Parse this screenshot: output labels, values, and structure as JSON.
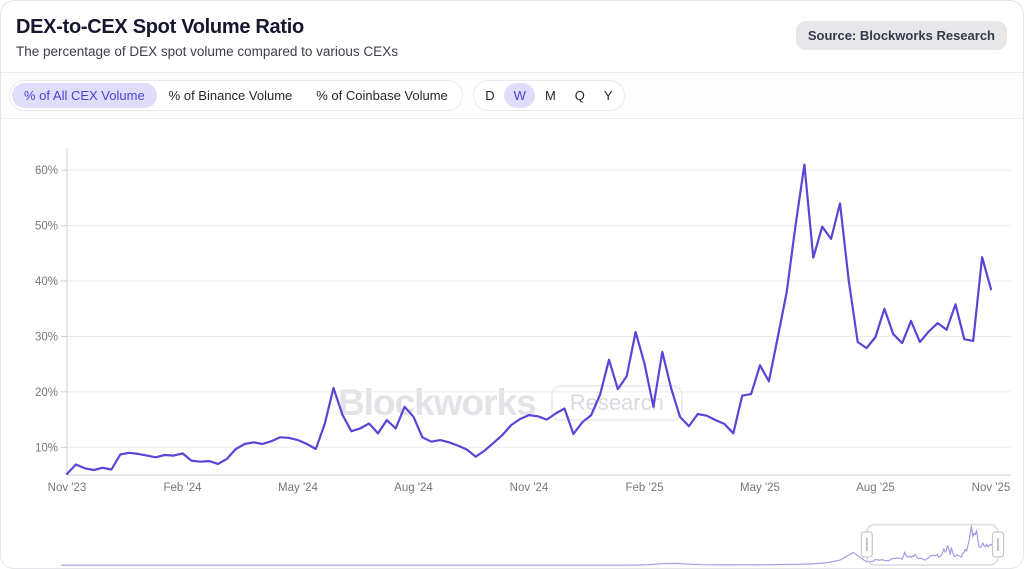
{
  "header": {
    "title": "DEX-to-CEX Spot Volume Ratio",
    "subtitle": "The percentage of DEX spot volume compared to various CEXs",
    "source_badge": "Source: Blockworks Research"
  },
  "series_tabs": [
    {
      "label": "% of All CEX Volume",
      "selected": true
    },
    {
      "label": "% of Binance Volume",
      "selected": false
    },
    {
      "label": "% of Coinbase Volume",
      "selected": false
    }
  ],
  "interval_tabs": [
    {
      "label": "D",
      "selected": false
    },
    {
      "label": "W",
      "selected": true
    },
    {
      "label": "M",
      "selected": false
    },
    {
      "label": "Q",
      "selected": false
    },
    {
      "label": "Y",
      "selected": false
    }
  ],
  "watermark": {
    "brand": "Blockworks",
    "badge": "Research"
  },
  "colors": {
    "accent": "#5b44d6",
    "accent_pill_bg": "#e0ddfa",
    "navigator_line": "#a89ae4",
    "grid": "#ebebef",
    "axis": "#cfcfd7",
    "tick_label": "#76767f",
    "window_border": "#d9d9e1",
    "handle_border": "#c6c6d0",
    "handle_grip": "#aeaeba"
  },
  "chart_data": {
    "type": "line",
    "title": "DEX-to-CEX Spot Volume Ratio",
    "xlabel": "",
    "ylabel": "",
    "unit": "%",
    "grid": true,
    "legend_position": "none",
    "ylim": [
      5,
      64
    ],
    "y_ticks": [
      10,
      20,
      30,
      40,
      50,
      60
    ],
    "x_tick_labels": [
      "Nov '23",
      "Feb '24",
      "May '24",
      "Aug '24",
      "Nov '24",
      "Feb '25",
      "May '25",
      "Aug '25",
      "Nov '25"
    ],
    "x_tick_weeks": [
      0,
      13,
      26,
      39,
      52,
      65,
      78,
      91,
      104
    ],
    "series": [
      {
        "name": "% of All CEX Volume",
        "frequency": "weekly",
        "x_start_label": "Nov '23",
        "x_end_label": "Nov '25",
        "values": [
          5.2,
          6.9,
          6.2,
          5.9,
          6.3,
          6.0,
          8.7,
          9.0,
          8.8,
          8.5,
          8.2,
          8.6,
          8.5,
          8.9,
          7.6,
          7.4,
          7.5,
          7.0,
          7.9,
          9.7,
          10.6,
          10.9,
          10.6,
          11.1,
          11.8,
          11.7,
          11.3,
          10.6,
          9.7,
          14.2,
          20.7,
          15.9,
          12.9,
          13.4,
          14.3,
          12.5,
          14.9,
          13.4,
          17.3,
          15.5,
          11.8,
          11.0,
          11.3,
          10.9,
          10.3,
          9.6,
          8.3,
          9.4,
          10.8,
          12.2,
          14.0,
          15.1,
          15.8,
          15.6,
          15.0,
          16.1,
          17.0,
          12.4,
          14.5,
          15.8,
          19.5,
          25.8,
          20.5,
          22.8,
          30.8,
          25.1,
          17.3,
          27.2,
          20.6,
          15.5,
          13.8,
          16.0,
          15.7,
          14.9,
          14.2,
          12.5,
          19.3,
          19.6,
          24.8,
          21.9,
          29.9,
          38.0,
          50.0,
          61.0,
          44.2,
          49.8,
          47.6,
          54.0,
          40.0,
          29.0,
          27.9,
          29.9,
          35.0,
          30.4,
          28.8,
          32.8,
          29.0,
          30.9,
          32.4,
          31.2,
          35.8,
          29.5,
          29.2,
          44.3,
          38.5
        ]
      }
    ],
    "navigator": {
      "description": "mini range-selector strip at bottom; selected window corresponds to Nov '23 - Nov '25",
      "pre_window_values": [
        0.4,
        0.4,
        0.4,
        0.4,
        0.4,
        0.4,
        0.4,
        0.4,
        0.4,
        0.4,
        0.4,
        0.4,
        0.4,
        0.4,
        0.4,
        0.4,
        0.4,
        0.4,
        0.4,
        0.4,
        0.4,
        0.4,
        0.4,
        0.4,
        0.4,
        0.4,
        0.4,
        0.4,
        0.4,
        0.4,
        0.4,
        0.4,
        0.4,
        0.4,
        0.4,
        0.4,
        0.4,
        0.5,
        0.5,
        0.5,
        0.5,
        0.5,
        0.6,
        1.2,
        2.8,
        3.2,
        2.0,
        1.2,
        0.9,
        1.0,
        1.1,
        1.0,
        1.2,
        1.5,
        1.8,
        2.5,
        4.0,
        8.0,
        20.0,
        5.4
      ],
      "window_start_frac": 0.86,
      "window_end_frac": 1.0
    }
  }
}
